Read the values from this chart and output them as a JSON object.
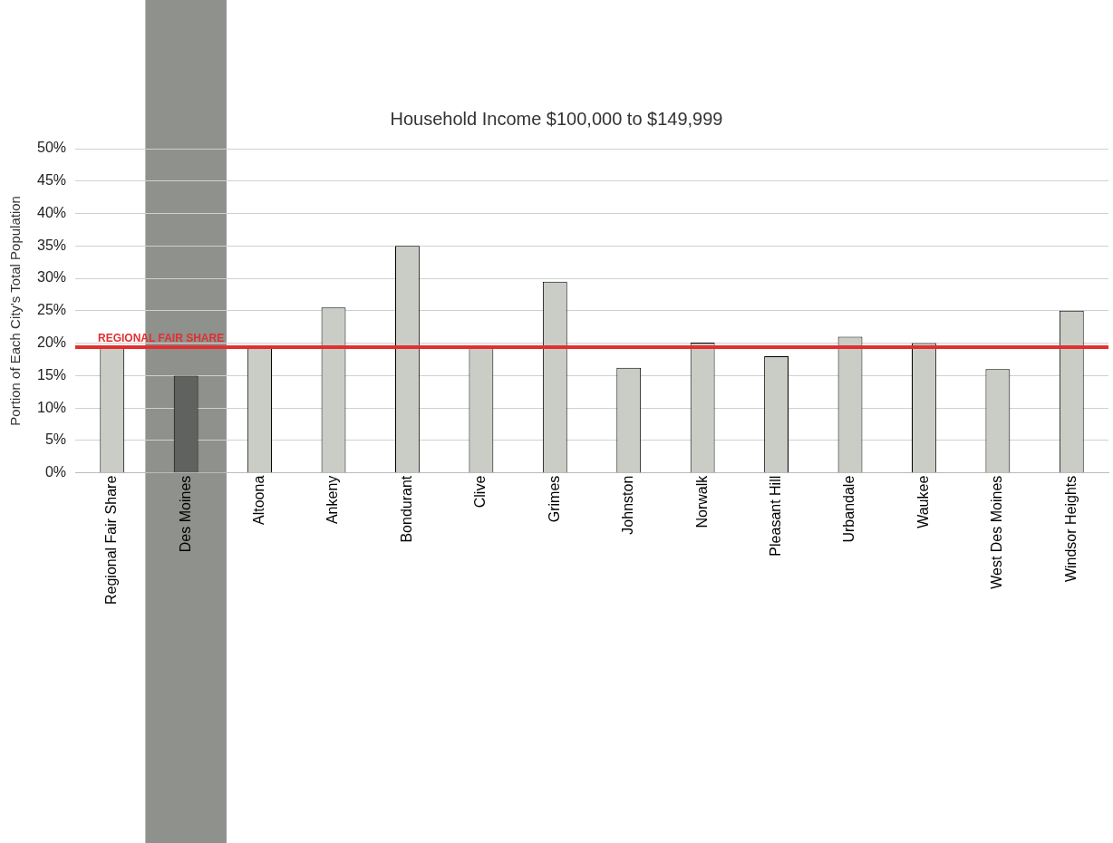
{
  "chart_data": {
    "type": "bar",
    "title": "Household Income $100,000 to $149,999",
    "ylabel": "Portion of Each City's Total Population",
    "categories": [
      "Regional Fair Share",
      "Des Moines",
      "Altoona",
      "Ankeny",
      "Bondurant",
      "Clive",
      "Grimes",
      "Johnston",
      "Norwalk",
      "Pleasant Hill",
      "Urbandale",
      "Waukee",
      "West Des Moines",
      "Windsor Heights"
    ],
    "values": [
      19.3,
      15,
      19.2,
      25.5,
      35,
      19.3,
      29.5,
      16.2,
      20.1,
      18,
      21,
      20,
      16,
      25
    ],
    "colors": [
      "#c9cdc5",
      "#5f625e",
      "#c9cdc5",
      "#c9cdc5",
      "#c9cdc5",
      "#c9cdc5",
      "#c9cdc5",
      "#c9cdc5",
      "#c9cdc5",
      "#c9cdc5",
      "#c9cdc5",
      "#c9cdc5",
      "#c9cdc5",
      "#c9cdc5"
    ],
    "ylim": [
      0,
      50
    ],
    "yticks": [
      {
        "value": 0,
        "label": "0%"
      },
      {
        "value": 5,
        "label": "5%"
      },
      {
        "value": 10,
        "label": "10%"
      },
      {
        "value": 15,
        "label": "15%"
      },
      {
        "value": 20,
        "label": "20%"
      },
      {
        "value": 25,
        "label": "25%"
      },
      {
        "value": 30,
        "label": "30%"
      },
      {
        "value": 35,
        "label": "35%"
      },
      {
        "value": 40,
        "label": "40%"
      },
      {
        "value": 45,
        "label": "45%"
      },
      {
        "value": 50,
        "label": "50%"
      }
    ],
    "grid": "y",
    "legend": false,
    "ref_lines": [
      {
        "axis": "y",
        "value": 19.4,
        "label": "REGIONAL FAIR SHARE",
        "color": "#e03030"
      }
    ],
    "bands": [
      {
        "axis": "x",
        "from": "Des Moines",
        "to": "Des Moines",
        "color": "#8e918c"
      }
    ]
  }
}
